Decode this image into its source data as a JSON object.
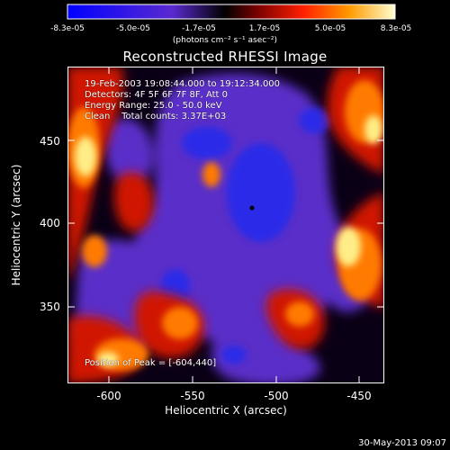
{
  "colorbar": {
    "tick_labels": [
      "-8.3e-05",
      "-5.0e-05",
      "-1.7e-05",
      "1.7e-05",
      "5.0e-05",
      "8.3e-05"
    ],
    "units": "(photons cm⁻² s⁻¹ asec⁻²)"
  },
  "title": "Reconstructed RHESSI Image",
  "info": {
    "time_range": "19-Feb-2003 19:08:44.000 to 19:12:34.000",
    "detectors": "Detectors: 4F 5F 6F 7F 8F, Att 0",
    "energy_range": "Energy Range: 25.0 - 50.0 keV",
    "algorithm": "Clean    Total counts: 3.37E+03"
  },
  "peak_text": "Position of Peak = [-604,440]",
  "x_axis": {
    "label": "Heliocentric X (arcsec)",
    "ticks": [
      "-600",
      "-550",
      "-500",
      "-450"
    ],
    "range": [
      -625,
      -435
    ]
  },
  "y_axis": {
    "label": "Heliocentric Y (arcsec)",
    "ticks": [
      "450",
      "400",
      "350"
    ],
    "range": [
      300,
      490
    ]
  },
  "footer_date": "30-May-2013 09:07"
}
